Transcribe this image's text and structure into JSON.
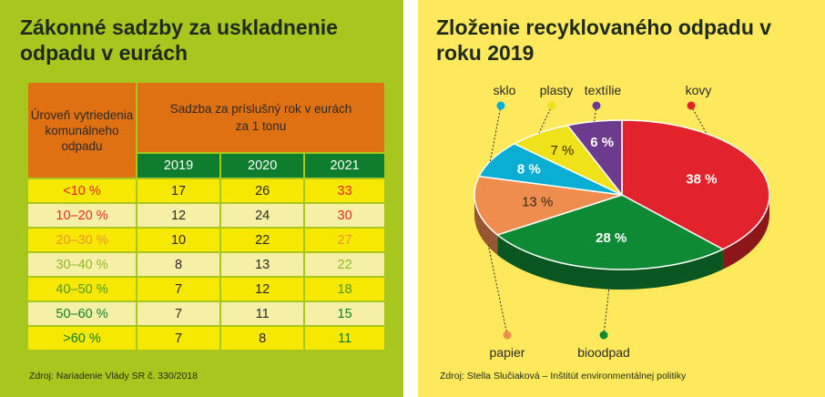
{
  "left": {
    "title": "Zákonné sadzby za uskladnenie odpadu v eurách",
    "header_level": "Úroveň vytriedenia komunálneho odpadu",
    "header_rate": "Sadzba za príslušný rok v eurách za 1 tonu",
    "years": [
      "2019",
      "2020",
      "2021"
    ],
    "rows": [
      {
        "level": "<10 %",
        "v2019": "17",
        "v2020": "26",
        "v2021": "33"
      },
      {
        "level": "10–20 %",
        "v2019": "12",
        "v2020": "24",
        "v2021": "30"
      },
      {
        "level": "20–30 %",
        "v2019": "10",
        "v2020": "22",
        "v2021": "27"
      },
      {
        "level": "30–40 %",
        "v2019": "8",
        "v2020": "13",
        "v2021": "22"
      },
      {
        "level": "40–50 %",
        "v2019": "7",
        "v2020": "12",
        "v2021": "18"
      },
      {
        "level": "50–60 %",
        "v2019": "7",
        "v2020": "11",
        "v2021": "15"
      },
      {
        "level": ">60 %",
        "v2019": "7",
        "v2020": "8",
        "v2021": "11"
      }
    ],
    "row_colors": [
      "#e5262c",
      "#e5262c",
      "#f0962a",
      "#8fb82a",
      "#4f9a2a",
      "#0e7d2e",
      "#0e7d2e"
    ],
    "source": "Zdroj: Nariadenie Vlády SR č. 330/2018"
  },
  "right": {
    "title": "Zloženie recyklovaného odpadu v roku 2019",
    "source": "Zdroj: Stella Slučiaková – Inštitút environmentálnej politiky"
  },
  "chart_data": [
    {
      "type": "table",
      "title": "Zákonné sadzby za uskladnenie odpadu v eurách",
      "columns": [
        "Úroveň vytriedenia komunálneho odpadu",
        "2019",
        "2020",
        "2021"
      ],
      "rows": [
        [
          "<10 %",
          17,
          26,
          33
        ],
        [
          "10–20 %",
          12,
          24,
          30
        ],
        [
          "20–30 %",
          10,
          22,
          27
        ],
        [
          "30–40 %",
          8,
          13,
          22
        ],
        [
          "40–50 %",
          7,
          12,
          18
        ],
        [
          "50–60 %",
          7,
          11,
          15
        ],
        [
          ">60 %",
          7,
          8,
          11
        ]
      ]
    },
    {
      "type": "pie",
      "title": "Zloženie recyklovaného odpadu v roku 2019",
      "slices": [
        {
          "label": "kovy",
          "value": 38,
          "display": "38 %",
          "color": "#e3232c"
        },
        {
          "label": "bioodpad",
          "value": 28,
          "display": "28 %",
          "color": "#0e8a35"
        },
        {
          "label": "papier",
          "value": 13,
          "display": "13 %",
          "color": "#ef8d4f"
        },
        {
          "label": "sklo",
          "value": 8,
          "display": "8 %",
          "color": "#0aaed3"
        },
        {
          "label": "plasty",
          "value": 7,
          "display": "7 %",
          "color": "#f0e21a"
        },
        {
          "label": "textílie",
          "value": 6,
          "display": "6 %",
          "color": "#6c3b8e"
        }
      ]
    }
  ]
}
